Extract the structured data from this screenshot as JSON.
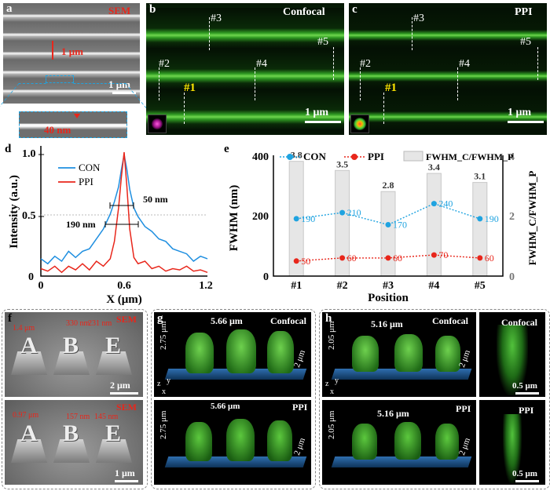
{
  "panel_a": {
    "label": "a",
    "tag": "SEM",
    "pitch": "1 μm",
    "scale": "1 μm",
    "linewidth": "40 nm"
  },
  "panel_b": {
    "label": "b",
    "tag": "Confocal",
    "scale": "1 μm",
    "marks": [
      "#1",
      "#2",
      "#3",
      "#4",
      "#5"
    ]
  },
  "panel_c": {
    "label": "c",
    "tag": "PPI",
    "scale": "1 μm",
    "marks": [
      "#1",
      "#2",
      "#3",
      "#4",
      "#5"
    ]
  },
  "panel_d": {
    "label": "d"
  },
  "panel_e": {
    "label": "e"
  },
  "panel_f": {
    "label": "f",
    "tag_top": "SEM",
    "tag_bottom": "SEM",
    "dims_top": [
      "1.4 μm",
      "330 nm",
      "231 nm"
    ],
    "dims_bottom": [
      "0.97 μm",
      "157 nm",
      "145 nm"
    ],
    "scale_top": "2 μm",
    "scale_bottom": "1 μm",
    "letters": [
      "A",
      "B",
      "E"
    ]
  },
  "panel_g": {
    "label": "g",
    "top": {
      "width": "5.66 μm",
      "tag": "Confocal",
      "height": "2.75 μm",
      "depth": "2 μm"
    },
    "bottom": {
      "width": "5.66 μm",
      "tag": "PPI",
      "height": "2.75 μm",
      "depth": "2 μm"
    },
    "axes": [
      "z",
      "y",
      "x"
    ]
  },
  "panel_h": {
    "label": "h",
    "top": {
      "width": "5.16 μm",
      "tag": "Confocal",
      "height": "2.05 μm",
      "depth": "2 μm"
    },
    "bottom": {
      "width": "5.16 μm",
      "tag": "PPI",
      "height": "2.05 μm",
      "depth": "2 μm"
    },
    "side_top": {
      "tag": "Confocal",
      "scale": "0.5 μm"
    },
    "side_bottom": {
      "tag": "PPI",
      "scale": "0.5 μm"
    },
    "axes": [
      "z",
      "y",
      "x"
    ]
  },
  "chart_data": [
    {
      "type": "line",
      "id": "d",
      "xlabel": "X (μm)",
      "ylabel": "Intensity (a.u.)",
      "xticks": [
        "0",
        "0.6",
        "1.2"
      ],
      "yticks": [
        "0",
        "0.5 –",
        "1.0 –"
      ],
      "xlim": [
        0,
        1.2
      ],
      "ylim": [
        0,
        1.0
      ],
      "annotations": [
        "50 nm",
        "190 nm"
      ],
      "series": [
        {
          "name": "CON",
          "color": "#1f8fe0",
          "x": [
            0,
            0.05,
            0.1,
            0.15,
            0.2,
            0.25,
            0.3,
            0.35,
            0.4,
            0.45,
            0.5,
            0.53,
            0.56,
            0.58,
            0.6,
            0.62,
            0.64,
            0.67,
            0.7,
            0.75,
            0.8,
            0.85,
            0.9,
            0.95,
            1.0,
            1.05,
            1.1,
            1.15,
            1.2
          ],
          "y": [
            0.14,
            0.1,
            0.16,
            0.12,
            0.2,
            0.15,
            0.2,
            0.22,
            0.3,
            0.38,
            0.5,
            0.6,
            0.72,
            0.86,
            0.98,
            0.86,
            0.7,
            0.55,
            0.48,
            0.4,
            0.36,
            0.3,
            0.28,
            0.22,
            0.2,
            0.18,
            0.12,
            0.16,
            0.14
          ]
        },
        {
          "name": "PPI",
          "color": "#e8261b",
          "x": [
            0,
            0.05,
            0.1,
            0.15,
            0.2,
            0.25,
            0.3,
            0.35,
            0.4,
            0.45,
            0.5,
            0.53,
            0.56,
            0.58,
            0.6,
            0.62,
            0.64,
            0.67,
            0.7,
            0.75,
            0.8,
            0.85,
            0.9,
            0.95,
            1.0,
            1.05,
            1.1,
            1.15,
            1.2
          ],
          "y": [
            0.06,
            0.04,
            0.08,
            0.03,
            0.08,
            0.05,
            0.1,
            0.05,
            0.12,
            0.08,
            0.14,
            0.28,
            0.55,
            0.8,
            1.0,
            0.72,
            0.38,
            0.15,
            0.1,
            0.12,
            0.06,
            0.08,
            0.04,
            0.06,
            0.05,
            0.08,
            0.04,
            0.05,
            0.03
          ]
        }
      ]
    },
    {
      "type": "bar",
      "id": "e",
      "xlabel": "Position",
      "ylabel": "FWHM (nm)",
      "ylabel_right": "FWHM_C/FWHM_P",
      "categories": [
        "#1",
        "#2",
        "#3",
        "#4",
        "#5"
      ],
      "yticks": [
        "0",
        "200",
        "400"
      ],
      "yticks_right": [
        "0",
        "2",
        "4"
      ],
      "ylim": [
        0,
        400
      ],
      "ylim_right": [
        0,
        4
      ],
      "legend": [
        "CON",
        "PPI",
        "FWHM_C/FWHM_P"
      ],
      "ratio": {
        "name": "FWHM_C/FWHM_P",
        "values": [
          3.8,
          3.5,
          2.8,
          3.4,
          3.1
        ],
        "color": "#e6e6e6"
      },
      "series": [
        {
          "name": "CON",
          "values": [
            190,
            210,
            170,
            240,
            190
          ],
          "color": "#1fa3e0"
        },
        {
          "name": "PPI",
          "values": [
            50,
            60,
            60,
            70,
            60
          ],
          "color": "#e8261b"
        }
      ]
    }
  ]
}
